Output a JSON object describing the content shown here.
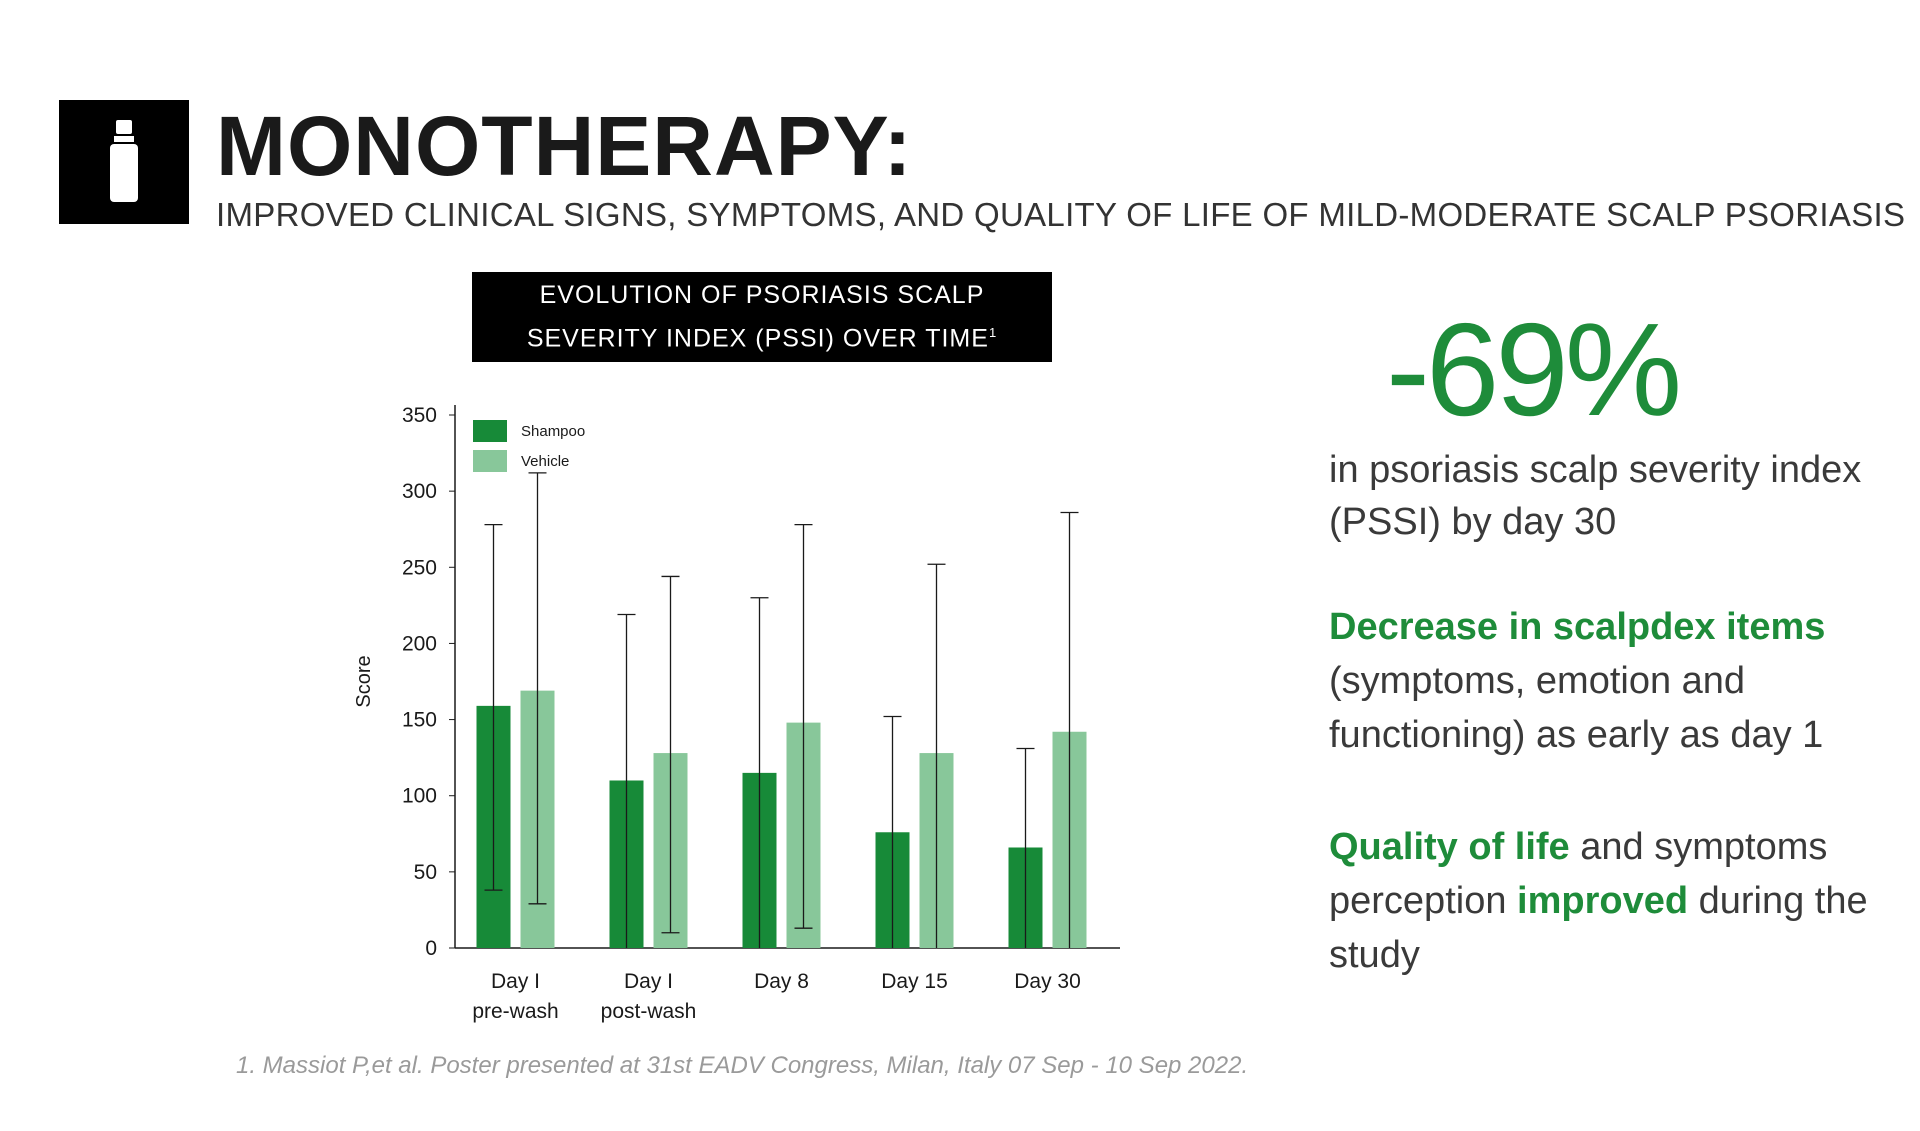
{
  "header": {
    "title": "MONOTHERAPY:",
    "subtitle": "IMPROVED CLINICAL SIGNS, SYMPTOMS, AND QUALITY OF LIFE OF MILD-MODERATE SCALP PSORIASIS",
    "icon": "bottle-icon"
  },
  "chart_box": {
    "line1": "EVOLUTION OF PSORIASIS SCALP",
    "line2": "SEVERITY INDEX (PSSI) OVER TIME",
    "footnote_mark": "1"
  },
  "chart_data": {
    "type": "bar",
    "categories": [
      [
        "Day I",
        "pre-wash"
      ],
      [
        "Day I",
        "post-wash"
      ],
      [
        "Day 8"
      ],
      [
        "Day 15"
      ],
      [
        "Day 30"
      ]
    ],
    "series": [
      {
        "name": "Shampoo",
        "color": "#178a38",
        "values": [
          159,
          110,
          115,
          76,
          66
        ],
        "error_low": [
          38,
          null,
          null,
          null,
          null
        ],
        "error_high": [
          278,
          219,
          230,
          152,
          131
        ]
      },
      {
        "name": "Vehicle",
        "color": "#88c79a",
        "values": [
          169,
          128,
          148,
          128,
          142
        ],
        "error_low": [
          29,
          10,
          13,
          null,
          null
        ],
        "error_high": [
          312,
          244,
          278,
          252,
          286
        ]
      }
    ],
    "ylabel": "Score",
    "xlabel": "",
    "ylim": [
      0,
      350
    ],
    "yticks": [
      0,
      50,
      100,
      150,
      200,
      250,
      300,
      350
    ],
    "legend_position": "top-left",
    "grid": false
  },
  "stats": {
    "big": "-69%",
    "big_text": "in psoriasis scalp severity index (PSSI) by day 30",
    "b2_highlight": "Decrease in scalpdex items",
    "b2_text": "(symptoms, emotion and functioning) as early as day 1",
    "b3_hl1": "Quality of life",
    "b3_t1": " and symptoms perception ",
    "b3_hl2": "improved",
    "b3_t2": " during the study"
  },
  "footnote": "1. Massiot P,et al. Poster presented at 31st EADV Congress, Milan, Italy 07 Sep - 10 Sep 2022."
}
